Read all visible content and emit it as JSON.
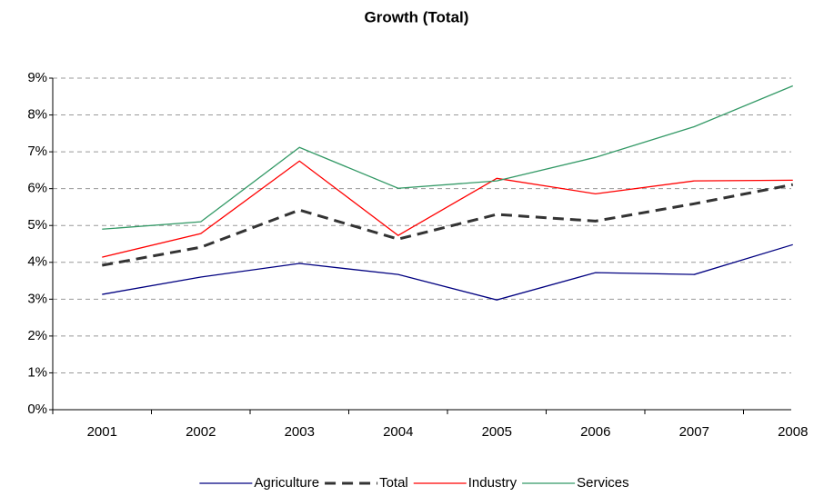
{
  "chart_data": {
    "type": "line",
    "title": "Growth (Total)",
    "categories": [
      "2001",
      "2002",
      "2003",
      "2004",
      "2005",
      "2006",
      "2007",
      "2008"
    ],
    "series": [
      {
        "name": "Agriculture",
        "color": "#000080",
        "dash": false,
        "values": [
          3.13,
          3.6,
          3.97,
          3.67,
          2.98,
          3.72,
          3.67,
          4.48
        ]
      },
      {
        "name": "Total",
        "color": "#333333",
        "dash": true,
        "values": [
          3.92,
          4.41,
          5.42,
          4.63,
          5.3,
          5.12,
          5.59,
          6.11
        ]
      },
      {
        "name": "Industry",
        "color": "#ff0000",
        "dash": false,
        "values": [
          4.14,
          4.78,
          6.75,
          4.73,
          6.28,
          5.86,
          6.21,
          6.23
        ]
      },
      {
        "name": "Services",
        "color": "#339966",
        "dash": false,
        "values": [
          4.9,
          5.1,
          7.12,
          6.01,
          6.21,
          6.85,
          7.68,
          8.79
        ]
      }
    ],
    "ylim": [
      0,
      9
    ],
    "yticks": [
      {
        "value": 0,
        "label": "0%"
      },
      {
        "value": 1,
        "label": "1%"
      },
      {
        "value": 2,
        "label": "2%"
      },
      {
        "value": 3,
        "label": "3%"
      },
      {
        "value": 4,
        "label": "4%"
      },
      {
        "value": 5,
        "label": "5%"
      },
      {
        "value": 6,
        "label": "6%"
      },
      {
        "value": 7,
        "label": "7%"
      },
      {
        "value": 8,
        "label": "8%"
      },
      {
        "value": 9,
        "label": "9%"
      }
    ],
    "grid": true,
    "legend": "bottom"
  }
}
